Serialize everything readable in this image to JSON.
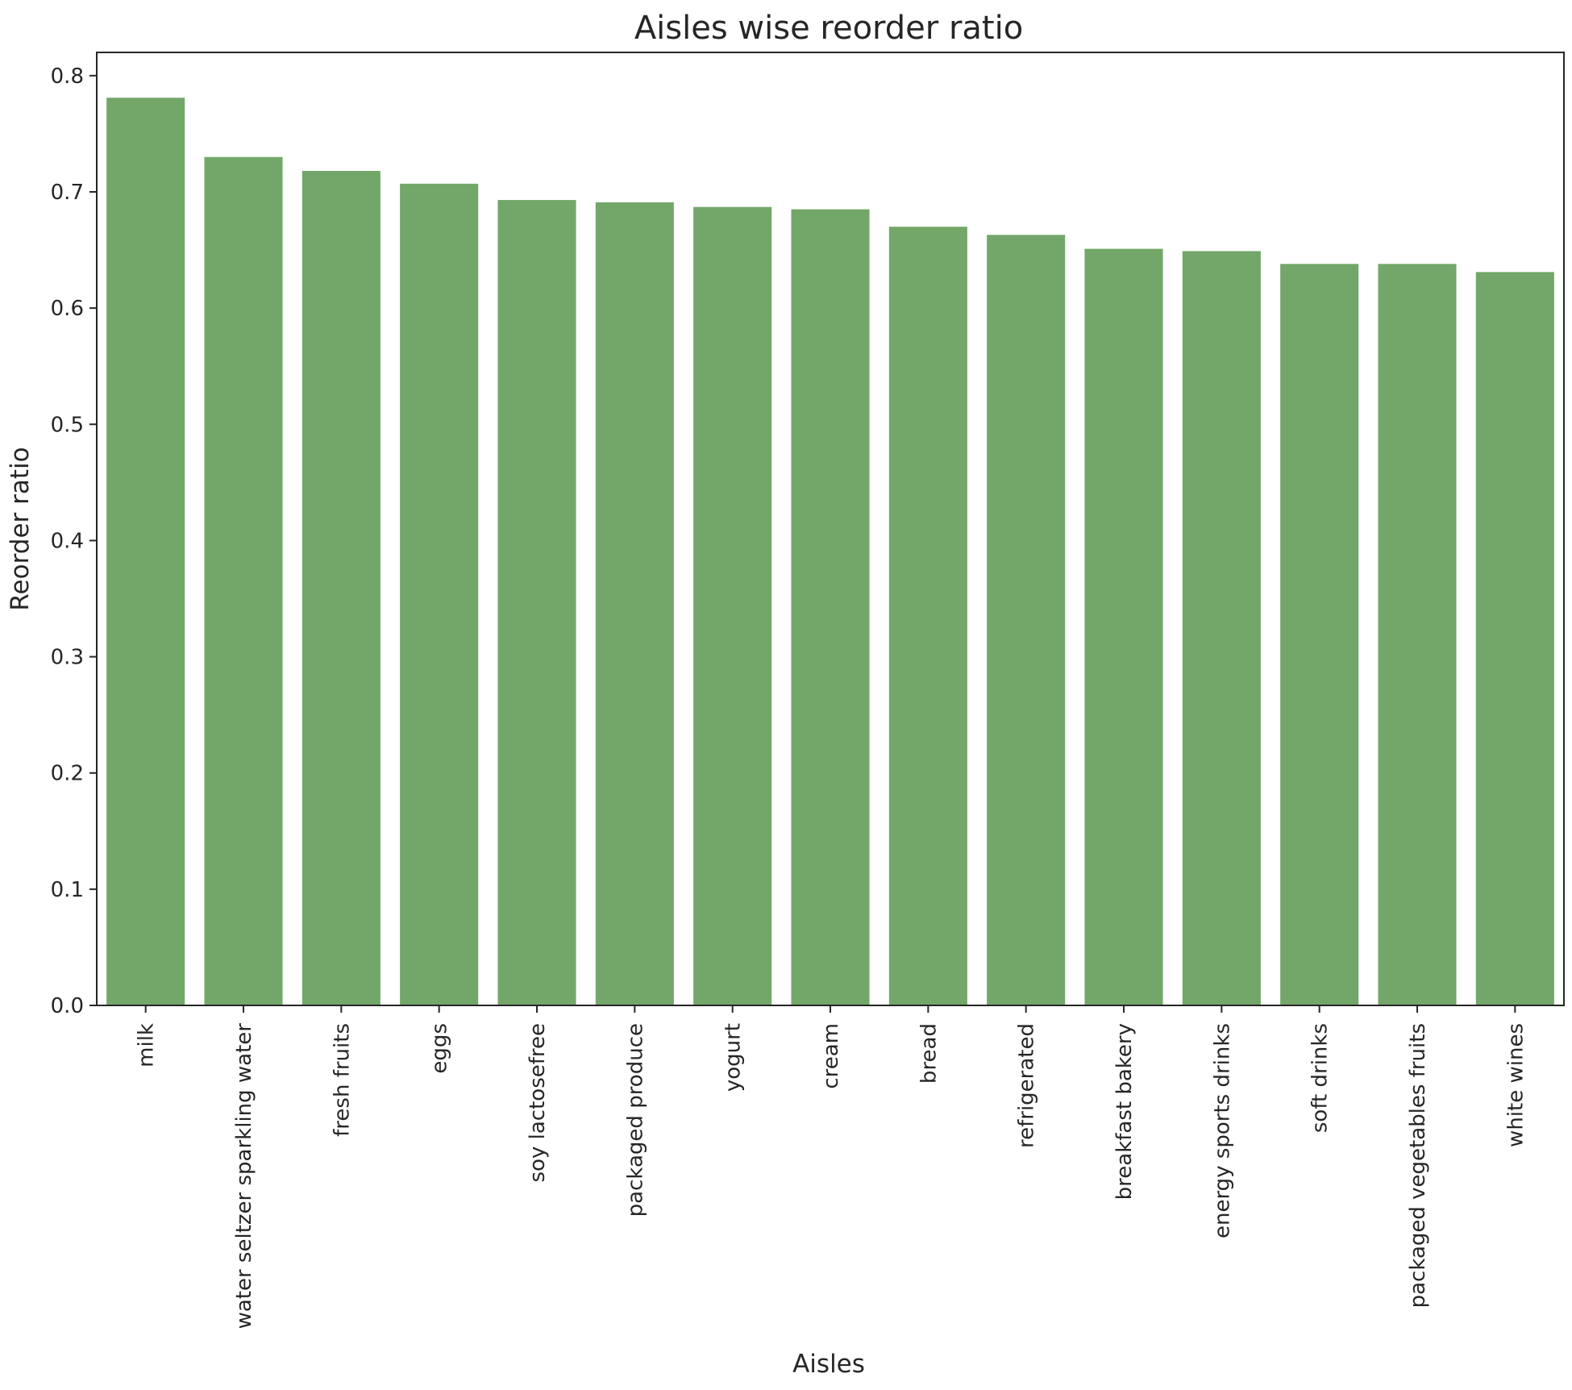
{
  "chart_data": {
    "type": "bar",
    "title": "Aisles wise reorder ratio",
    "xlabel": "Aisles",
    "ylabel": "Reorder ratio",
    "categories": [
      "milk",
      "water seltzer sparkling water",
      "fresh fruits",
      "eggs",
      "soy lactosefree",
      "packaged produce",
      "yogurt",
      "cream",
      "bread",
      "refrigerated",
      "breakfast bakery",
      "energy sports drinks",
      "soft drinks",
      "packaged vegetables fruits",
      "white wines"
    ],
    "values": [
      0.781,
      0.73,
      0.718,
      0.707,
      0.693,
      0.691,
      0.687,
      0.685,
      0.67,
      0.663,
      0.651,
      0.649,
      0.638,
      0.638,
      0.631
    ],
    "ylim": [
      0.0,
      0.82
    ],
    "yticks": [
      "0.0",
      "0.1",
      "0.2",
      "0.3",
      "0.4",
      "0.5",
      "0.6",
      "0.7",
      "0.8"
    ],
    "grid": false,
    "bar_color": "#72a769"
  }
}
